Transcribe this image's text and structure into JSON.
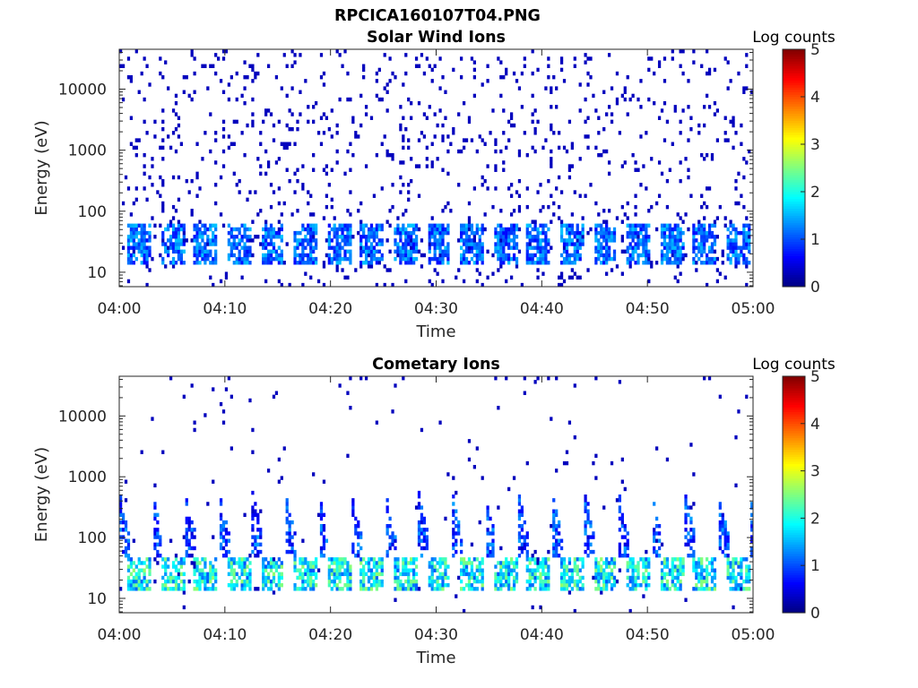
{
  "figure": {
    "title": "RPCICA160107T04.PNG",
    "background": "#ffffff"
  },
  "chart_data": [
    {
      "type": "heatmap",
      "title": "Solar Wind Ions",
      "xlabel": "Time",
      "ylabel": "Energy (eV)",
      "x_ticks": [
        "04:00",
        "04:10",
        "04:20",
        "04:30",
        "04:40",
        "04:50",
        "05:00"
      ],
      "x_range": [
        "04:00",
        "05:00"
      ],
      "y_scale": "log",
      "y_range": [
        5.8,
        45000
      ],
      "y_ticks": [
        10,
        100,
        1000,
        10000
      ],
      "colorbar": {
        "label": "Log counts",
        "range": [
          0,
          5
        ],
        "ticks": [
          0,
          1,
          2,
          3,
          4,
          5
        ],
        "colormap": "jet"
      },
      "pattern": {
        "noise_per_minute": 3.2,
        "noise_level": 0.3,
        "band_energy_range": [
          14,
          60
        ],
        "band_peak_level": 1.6,
        "sweep_period_minutes": 3.15,
        "sweep_top_energy": 60
      }
    },
    {
      "type": "heatmap",
      "title": "Cometary Ions",
      "xlabel": "Time",
      "ylabel": "Energy (eV)",
      "x_ticks": [
        "04:00",
        "04:10",
        "04:20",
        "04:30",
        "04:40",
        "04:50",
        "05:00"
      ],
      "x_range": [
        "04:00",
        "05:00"
      ],
      "y_scale": "log",
      "y_range": [
        5.8,
        45000
      ],
      "y_ticks": [
        10,
        100,
        1000,
        10000
      ],
      "colorbar": {
        "label": "Log counts",
        "range": [
          0,
          5
        ],
        "ticks": [
          0,
          1,
          2,
          3,
          4,
          5
        ],
        "colormap": "jet"
      },
      "pattern": {
        "noise_per_minute": 0.6,
        "noise_level": 0.3,
        "band_energy_range": [
          14,
          45
        ],
        "band_peak_level": 2.6,
        "sweep_period_minutes": 3.15,
        "sweep_top_energy": 600
      }
    }
  ]
}
